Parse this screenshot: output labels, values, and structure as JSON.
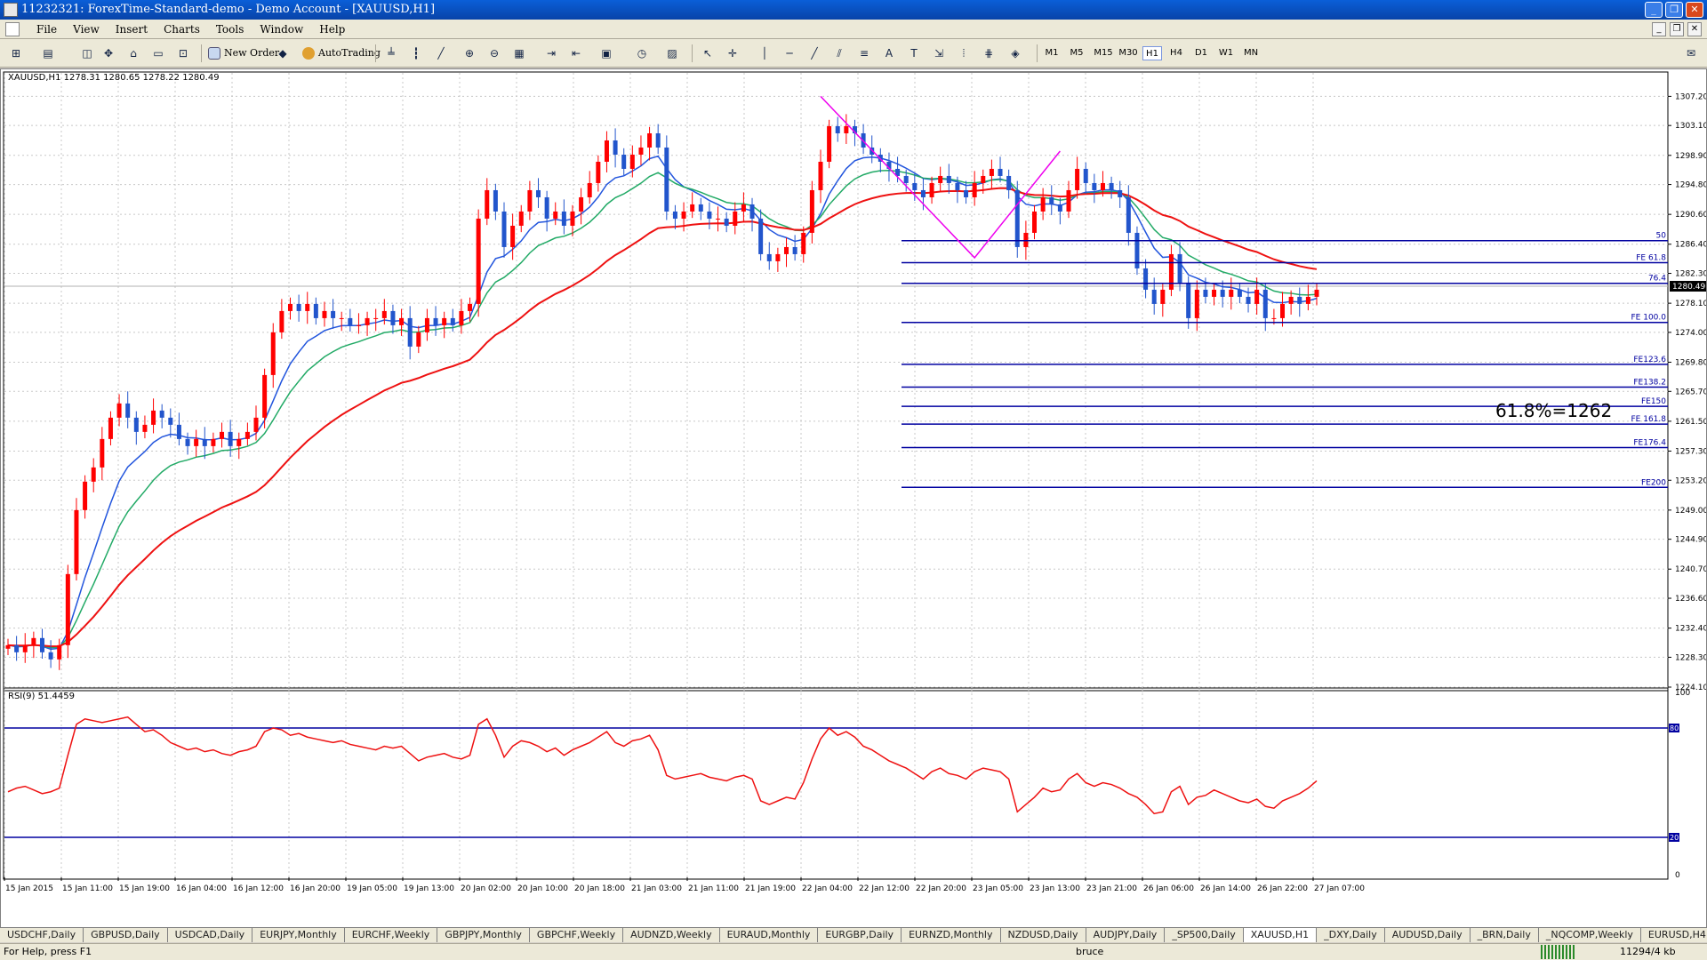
{
  "window": {
    "title": "11232321: ForexTime-Standard-demo - Demo Account - [XAUUSD,H1]",
    "buttons": [
      "_",
      "❐",
      "✕"
    ]
  },
  "menu": [
    "File",
    "View",
    "Insert",
    "Charts",
    "Tools",
    "Window",
    "Help"
  ],
  "toolbar": {
    "new_order": "New Order",
    "autotrading": "AutoTrading",
    "timeframes": [
      "M1",
      "M5",
      "M15",
      "M30",
      "H1",
      "H4",
      "D1",
      "W1",
      "MN"
    ],
    "active_timeframe": "H1"
  },
  "chart": {
    "header": "XAUUSD,H1  1278.31 1280.65 1278.22 1280.49",
    "current_price": "1280.49",
    "annotation": "61.8%=1262",
    "price_labels": [
      "1307.20",
      "1303.10",
      "1298.90",
      "1294.80",
      "1290.60",
      "1286.40",
      "1282.30",
      "1278.10",
      "1274.00",
      "1269.80",
      "1265.70",
      "1261.50",
      "1257.30",
      "1253.20",
      "1249.00",
      "1244.90",
      "1240.70",
      "1236.60",
      "1232.40",
      "1228.30",
      "1224.10"
    ],
    "fib_levels": [
      {
        "label": "50",
        "price": 1286.9
      },
      {
        "label": "FE 61.8",
        "price": 1283.8
      },
      {
        "label": "76.4",
        "price": 1280.9
      },
      {
        "label": "FE 100.0",
        "price": 1275.4
      },
      {
        "label": "FE123.6",
        "price": 1269.5
      },
      {
        "label": "FE138.2",
        "price": 1266.3
      },
      {
        "label": "FE150",
        "price": 1263.6
      },
      {
        "label": "FE 161.8",
        "price": 1261.1
      },
      {
        "label": "FE176.4",
        "price": 1257.8
      },
      {
        "label": "FE200",
        "price": 1252.2
      }
    ],
    "time_labels": [
      "15 Jan 2015",
      "15 Jan 11:00",
      "15 Jan 19:00",
      "16 Jan 04:00",
      "16 Jan 12:00",
      "16 Jan 20:00",
      "19 Jan 05:00",
      "19 Jan 13:00",
      "20 Jan 02:00",
      "20 Jan 10:00",
      "20 Jan 18:00",
      "21 Jan 03:00",
      "21 Jan 11:00",
      "21 Jan 19:00",
      "22 Jan 04:00",
      "22 Jan 12:00",
      "22 Jan 20:00",
      "23 Jan 05:00",
      "23 Jan 13:00",
      "23 Jan 21:00",
      "26 Jan 06:00",
      "26 Jan 14:00",
      "26 Jan 22:00",
      "27 Jan 07:00"
    ],
    "colors": {
      "bull": "#ff0000",
      "bear": "#2255cc",
      "fib": "#0000a0",
      "ma_fast": "#2255dd",
      "ma_mid": "#22aa66",
      "ma_slow": "#ee1111",
      "zigzag": "#ee00ee",
      "rsi": "#ee1111"
    }
  },
  "rsi": {
    "header": "RSI(9) 51.4459",
    "scale": [
      "100",
      "80",
      "20",
      "0"
    ],
    "levels": [
      80,
      20
    ]
  },
  "chart_data": {
    "type": "line",
    "title": "XAUUSD,H1",
    "ylim": [
      1224.1,
      1309.0
    ],
    "series": [
      {
        "name": "close",
        "values": [
          1230,
          1229,
          1230,
          1231,
          1229,
          1228,
          1230,
          1240,
          1249,
          1253,
          1255,
          1259,
          1262,
          1264,
          1262,
          1260,
          1261,
          1263,
          1262,
          1261,
          1259,
          1258,
          1259,
          1258,
          1259,
          1260,
          1258,
          1259,
          1260,
          1262,
          1268,
          1274,
          1277,
          1278,
          1277,
          1278,
          1276,
          1277,
          1276,
          1276,
          1275,
          1275,
          1276,
          1276,
          1277,
          1275,
          1276,
          1272,
          1274,
          1276,
          1275,
          1276,
          1275,
          1277,
          1278,
          1290,
          1294,
          1291,
          1286,
          1289,
          1291,
          1294,
          1293,
          1290,
          1291,
          1289,
          1291,
          1293,
          1295,
          1298,
          1301,
          1299,
          1297,
          1299,
          1300,
          1302,
          1300,
          1291,
          1290,
          1291,
          1292,
          1291,
          1290,
          1290,
          1289,
          1291,
          1292,
          1290,
          1285,
          1284,
          1285,
          1286,
          1285,
          1288,
          1294,
          1298,
          1303,
          1302,
          1303,
          1302,
          1300,
          1299,
          1298,
          1297,
          1296,
          1295,
          1294,
          1293,
          1295,
          1296,
          1295,
          1294,
          1293,
          1295,
          1296,
          1297,
          1296,
          1294,
          1286,
          1288,
          1291,
          1293,
          1292,
          1291,
          1294,
          1297,
          1295,
          1294,
          1295,
          1294,
          1293,
          1288,
          1283,
          1280,
          1278,
          1280,
          1285,
          1281,
          1276,
          1280,
          1279,
          1280,
          1279,
          1280,
          1279,
          1278,
          1280,
          1276,
          1276,
          1278,
          1279,
          1278,
          1279,
          1280
        ]
      },
      {
        "name": "RSI(9)",
        "values": [
          45,
          47,
          48,
          46,
          44,
          45,
          47,
          65,
          82,
          85,
          84,
          83,
          84,
          85,
          86,
          82,
          78,
          79,
          76,
          72,
          70,
          68,
          69,
          67,
          68,
          66,
          65,
          67,
          68,
          70,
          78,
          80,
          79,
          76,
          77,
          75,
          74,
          73,
          72,
          73,
          71,
          70,
          69,
          68,
          70,
          69,
          70,
          66,
          62,
          64,
          65,
          66,
          64,
          63,
          65,
          82,
          85,
          76,
          64,
          70,
          73,
          72,
          70,
          67,
          69,
          65,
          68,
          70,
          72,
          75,
          78,
          72,
          70,
          73,
          74,
          76,
          68,
          54,
          52,
          53,
          54,
          55,
          53,
          52,
          51,
          53,
          54,
          52,
          40,
          38,
          40,
          42,
          41,
          50,
          63,
          74,
          80,
          76,
          78,
          75,
          70,
          68,
          65,
          62,
          60,
          58,
          55,
          52,
          56,
          58,
          55,
          54,
          52,
          56,
          58,
          57,
          56,
          52,
          34,
          38,
          42,
          47,
          45,
          46,
          52,
          55,
          50,
          48,
          50,
          49,
          47,
          44,
          42,
          38,
          33,
          34,
          45,
          48,
          38,
          42,
          43,
          46,
          44,
          42,
          40,
          39,
          41,
          37,
          36,
          40,
          42,
          44,
          47,
          51
        ]
      }
    ]
  }
}
